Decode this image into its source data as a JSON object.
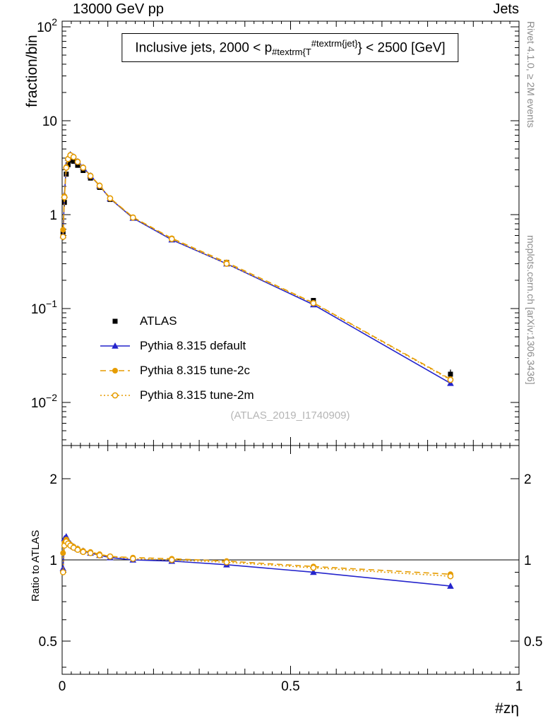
{
  "header": {
    "left": "13000 GeV pp",
    "right": "Jets"
  },
  "title": {
    "prefix": "Inclusive jets, 2000 < p",
    "sub": "#textrm{T",
    "sup": "#textrm{jet}",
    "suffix": "} < 2500 [GeV]"
  },
  "watermark": "(ATLAS_2019_I1740909)",
  "side": {
    "rivet": "Rivet 4.1.0, ≥ 2M events",
    "mcplots": "mcplots.cern.ch [arXiv:1306.3436]"
  },
  "axes": {
    "x": {
      "title": "#zη",
      "range": [
        0,
        1
      ],
      "ticks": [
        {
          "v": 0,
          "label": "0"
        },
        {
          "v": 0.5,
          "label": "0.5"
        },
        {
          "v": 1,
          "label": "1"
        }
      ]
    },
    "y_main": {
      "title": "fraction/bin",
      "scale": "log",
      "range": [
        0.0035,
        115
      ],
      "ticks": [
        {
          "v": 100,
          "mant": "10",
          "exp": "2"
        },
        {
          "v": 10,
          "mant": "10",
          "exp": ""
        },
        {
          "v": 1,
          "mant": "1",
          "exp": ""
        },
        {
          "v": 0.1,
          "mant": "10",
          "exp": "−1"
        },
        {
          "v": 0.01,
          "mant": "10",
          "exp": "−2"
        }
      ]
    },
    "y_ratio": {
      "title": "Ratio to ATLAS",
      "scale": "log",
      "range": [
        0.38,
        2.65
      ],
      "ticks": [
        {
          "v": 0.5,
          "label": "0.5"
        },
        {
          "v": 1,
          "label": "1"
        },
        {
          "v": 2,
          "label": "2"
        }
      ]
    }
  },
  "chart_data": {
    "type": "line",
    "title": "Inclusive jets, 2000 < pT^jet < 2500 [GeV]",
    "xlabel": "#zη",
    "ylabel": "fraction/bin",
    "ratio_ylabel": "Ratio to ATLAS",
    "x_range": [
      0,
      1
    ],
    "y_scale": "log",
    "y_main_range": [
      0.0035,
      115
    ],
    "y_ratio_range": [
      0.38,
      2.65
    ],
    "x": [
      0.002,
      0.005,
      0.009,
      0.013,
      0.018,
      0.025,
      0.034,
      0.046,
      0.062,
      0.082,
      0.105,
      0.155,
      0.24,
      0.36,
      0.55,
      0.85
    ],
    "series": [
      {
        "name": "ATLAS",
        "color": "#000000",
        "line": "none",
        "marker": "square-filled",
        "y": [
          0.65,
          1.35,
          2.7,
          3.4,
          3.8,
          3.7,
          3.35,
          2.95,
          2.45,
          1.95,
          1.45,
          0.92,
          0.55,
          0.31,
          0.122,
          0.02
        ],
        "yerr": [
          0.18,
          0.1,
          0.05,
          0.04,
          0.03,
          0.03,
          0.025,
          0.025,
          0.025,
          0.025,
          0.025,
          0.025,
          0.03,
          0.03,
          0.04,
          0.12
        ]
      },
      {
        "name": "Pythia 8.315 default",
        "color": "#2424cc",
        "line": "solid",
        "marker": "triangle-filled",
        "y": [
          0.6,
          1.62,
          3.29,
          4.01,
          4.37,
          4.14,
          3.69,
          3.19,
          2.6,
          2.03,
          1.48,
          0.92,
          0.54,
          0.3,
          0.11,
          0.016
        ],
        "ratio": [
          0.93,
          1.2,
          1.22,
          1.18,
          1.15,
          1.12,
          1.1,
          1.08,
          1.06,
          1.04,
          1.02,
          1.0,
          0.99,
          0.96,
          0.9,
          0.8
        ]
      },
      {
        "name": "Pythia 8.315 tune-2c",
        "color": "#e69c00",
        "line": "dashed",
        "marker": "circle-filled",
        "y": [
          0.69,
          1.57,
          3.21,
          3.94,
          4.33,
          4.14,
          3.69,
          3.19,
          2.61,
          2.05,
          1.5,
          0.94,
          0.56,
          0.31,
          0.115,
          0.0177
        ],
        "ratio": [
          1.06,
          1.16,
          1.19,
          1.16,
          1.14,
          1.12,
          1.1,
          1.08,
          1.07,
          1.05,
          1.03,
          1.02,
          1.01,
          0.99,
          0.945,
          0.885
        ]
      },
      {
        "name": "Pythia 8.315 tune-2m",
        "color": "#e69c00",
        "line": "dotted",
        "marker": "circle-open",
        "y": [
          0.58,
          1.53,
          3.16,
          3.91,
          4.29,
          4.11,
          3.65,
          3.16,
          2.58,
          2.03,
          1.49,
          0.93,
          0.55,
          0.3,
          0.114,
          0.0174
        ],
        "ratio": [
          0.9,
          1.13,
          1.17,
          1.15,
          1.13,
          1.11,
          1.09,
          1.07,
          1.06,
          1.04,
          1.03,
          1.01,
          1.0,
          0.98,
          0.935,
          0.87
        ]
      }
    ],
    "legend_position": "middle-left",
    "grid": false
  }
}
